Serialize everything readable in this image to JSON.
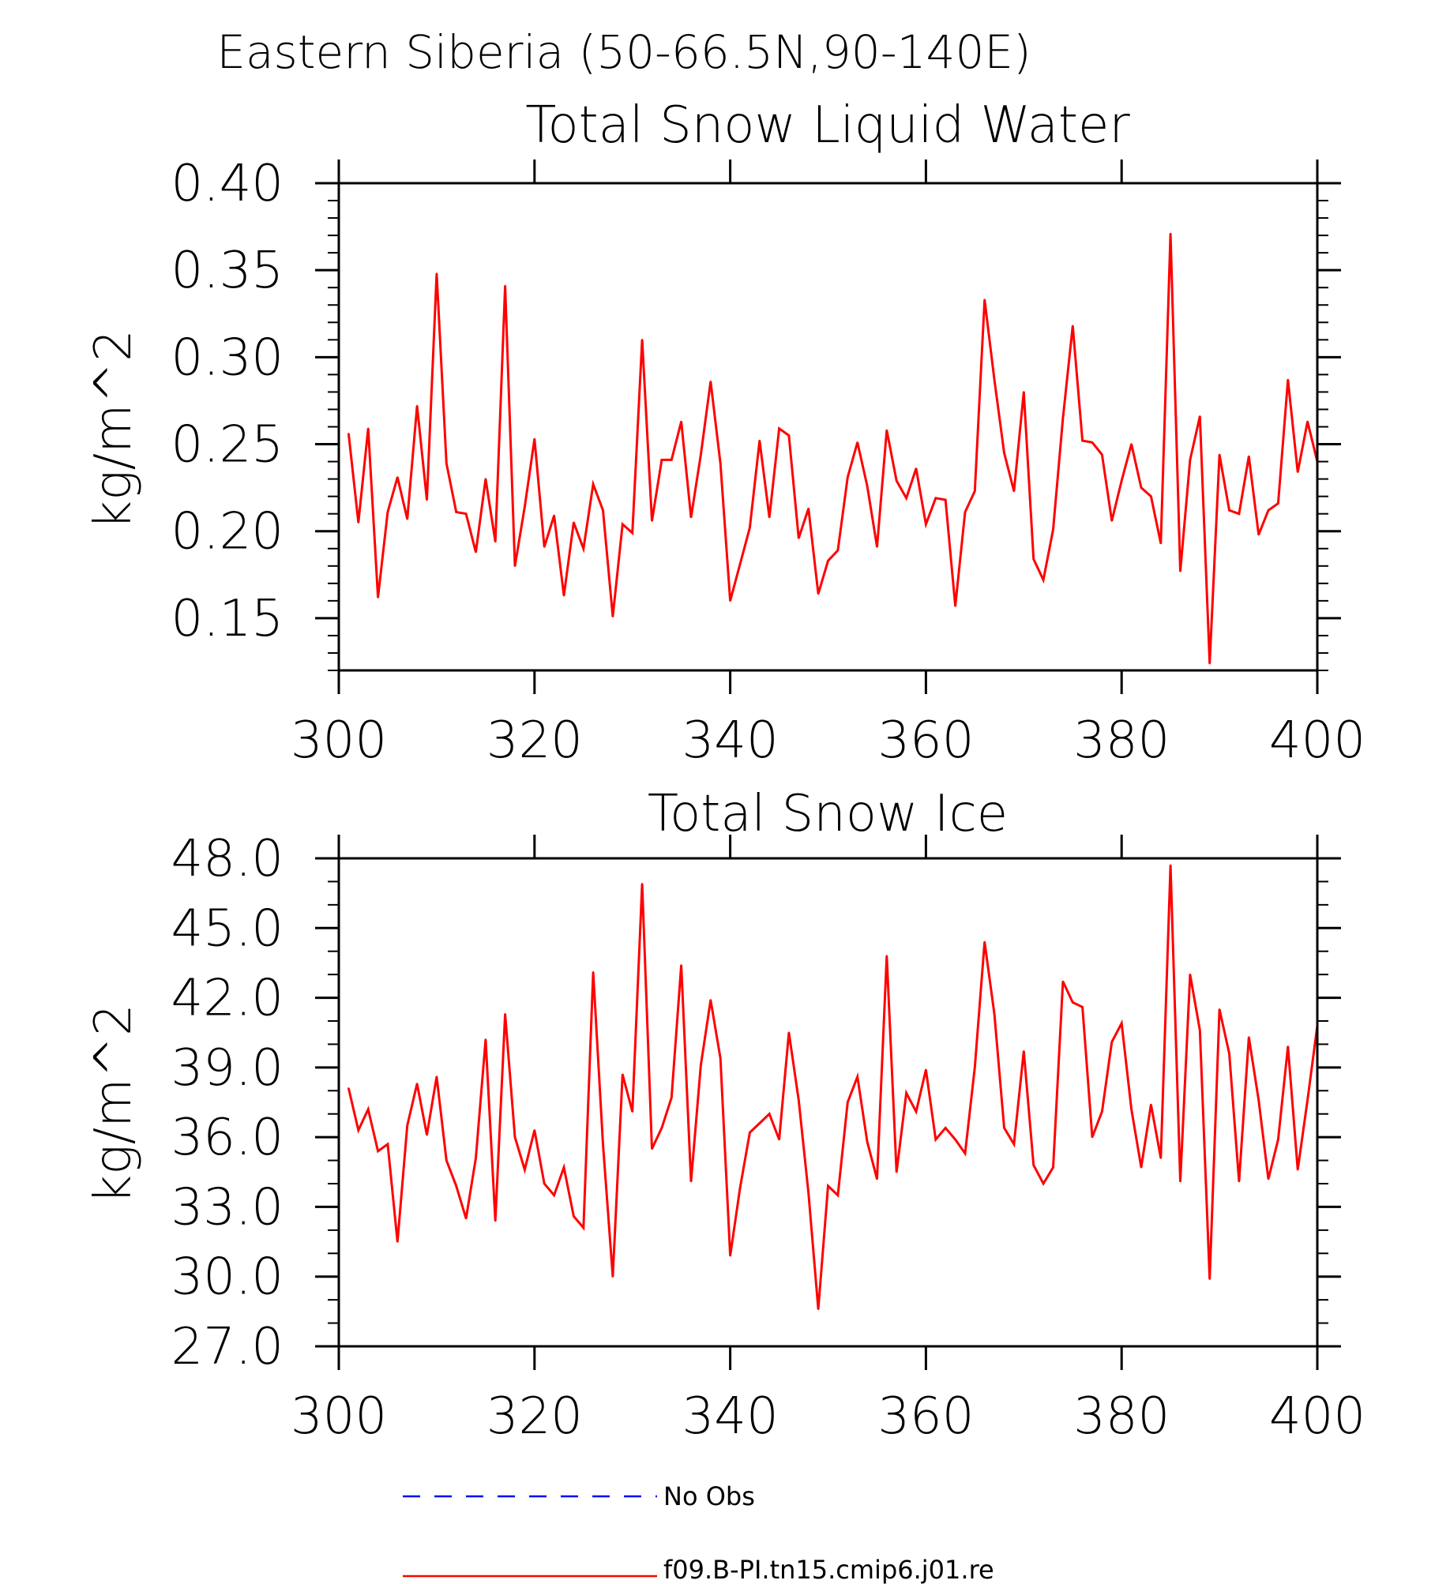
{
  "figure": {
    "main_title": "Eastern Siberia (50-66.5N,90-140E)"
  },
  "chart_data": [
    {
      "type": "line",
      "title": "Total Snow Liquid Water",
      "xlabel": "",
      "ylabel": "kg/m^2",
      "xlim": [
        300,
        400
      ],
      "ylim": [
        0.12,
        0.4
      ],
      "xticks": [
        300,
        320,
        340,
        360,
        380,
        400
      ],
      "yticks": [
        0.4,
        0.35,
        0.3,
        0.25,
        0.2,
        0.15
      ],
      "ytick_labels": [
        "0.40",
        "0.35",
        "0.30",
        "0.25",
        "0.20",
        "0.15"
      ],
      "grid": false,
      "series": [
        {
          "name": "f09.B-PI.tn15.cmip6.j01.re",
          "color": "#ff0000",
          "x_start": 301,
          "values": [
            0.256,
            0.205,
            0.259,
            0.162,
            0.211,
            0.231,
            0.207,
            0.272,
            0.218,
            0.348,
            0.239,
            0.211,
            0.21,
            0.188,
            0.23,
            0.194,
            0.341,
            0.18,
            0.214,
            0.253,
            0.191,
            0.209,
            0.163,
            0.205,
            0.19,
            0.227,
            0.212,
            0.151,
            0.204,
            0.199,
            0.31,
            0.206,
            0.241,
            0.241,
            0.263,
            0.208,
            0.244,
            0.286,
            0.239,
            0.16,
            0.181,
            0.202,
            0.252,
            0.208,
            0.259,
            0.255,
            0.196,
            0.213,
            0.164,
            0.183,
            0.189,
            0.231,
            0.251,
            0.226,
            0.191,
            0.258,
            0.229,
            0.219,
            0.236,
            0.204,
            0.219,
            0.218,
            0.157,
            0.211,
            0.223,
            0.333,
            0.287,
            0.245,
            0.223,
            0.28,
            0.184,
            0.172,
            0.201,
            0.265,
            0.318,
            0.252,
            0.251,
            0.244,
            0.206,
            0.229,
            0.25,
            0.225,
            0.22,
            0.193,
            0.371,
            0.177,
            0.241,
            0.266,
            0.124,
            0.244,
            0.212,
            0.21,
            0.243,
            0.198,
            0.212,
            0.216,
            0.287,
            0.234,
            0.263,
            0.24
          ]
        }
      ]
    },
    {
      "type": "line",
      "title": "Total Snow Ice",
      "xlabel": "",
      "ylabel": "kg/m^2",
      "xlim": [
        300,
        400
      ],
      "ylim": [
        27.0,
        48.0
      ],
      "xticks": [
        300,
        320,
        340,
        360,
        380,
        400
      ],
      "yticks": [
        48.0,
        45.0,
        42.0,
        39.0,
        36.0,
        33.0,
        30.0,
        27.0
      ],
      "ytick_labels": [
        "48.0",
        "45.0",
        "42.0",
        "39.0",
        "36.0",
        "33.0",
        "30.0",
        "27.0"
      ],
      "grid": false,
      "series": [
        {
          "name": "f09.B-PI.tn15.cmip6.j01.re",
          "color": "#ff0000",
          "x_start": 301,
          "values": [
            38.1,
            36.3,
            37.2,
            35.4,
            35.7,
            31.5,
            36.5,
            38.3,
            36.1,
            38.6,
            35.0,
            33.9,
            32.5,
            35.1,
            40.2,
            32.4,
            41.3,
            36.0,
            34.6,
            36.3,
            34.0,
            33.5,
            34.7,
            32.6,
            32.1,
            43.1,
            35.7,
            30.0,
            38.7,
            37.1,
            46.9,
            35.5,
            36.4,
            37.7,
            43.4,
            34.1,
            39.1,
            41.9,
            39.4,
            30.9,
            33.8,
            36.2,
            36.6,
            37.0,
            35.9,
            40.5,
            37.6,
            33.6,
            28.6,
            33.9,
            33.5,
            37.5,
            38.6,
            35.8,
            34.2,
            43.8,
            34.5,
            37.9,
            37.1,
            38.9,
            35.9,
            36.4,
            35.9,
            35.3,
            39.0,
            44.4,
            41.3,
            36.4,
            35.7,
            39.7,
            34.8,
            34.0,
            34.7,
            42.7,
            41.8,
            41.6,
            36.0,
            37.1,
            40.1,
            40.9,
            37.2,
            34.7,
            37.4,
            35.1,
            47.7,
            34.1,
            43.0,
            40.6,
            29.9,
            41.5,
            39.6,
            34.1,
            40.3,
            37.6,
            34.2,
            35.9,
            39.9,
            34.6,
            37.6,
            40.8
          ]
        }
      ]
    }
  ],
  "legend": {
    "items": [
      {
        "label": "No Obs",
        "color": "#0000ff",
        "style": "dashed"
      },
      {
        "label": "f09.B-PI.tn15.cmip6.j01.re",
        "color": "#ff0000",
        "style": "solid"
      }
    ]
  }
}
